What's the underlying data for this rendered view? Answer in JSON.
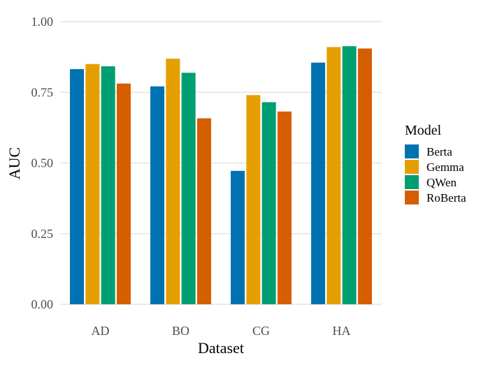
{
  "chart_data": {
    "type": "bar",
    "xlabel": "Dataset",
    "ylabel": "AUC",
    "categories": [
      "AD",
      "BO",
      "CG",
      "HA"
    ],
    "ylim": [
      0,
      1.0
    ],
    "yticks": [
      "0.00",
      "0.25",
      "0.50",
      "0.75",
      "1.00"
    ],
    "grid": true,
    "legend": {
      "title": "Model",
      "placement": "right"
    },
    "series": [
      {
        "name": "Berta",
        "color": "#0072B2",
        "values": [
          0.832,
          0.771,
          0.472,
          0.855
        ]
      },
      {
        "name": "Gemma",
        "color": "#E69F00",
        "values": [
          0.85,
          0.869,
          0.74,
          0.91
        ]
      },
      {
        "name": "QWen",
        "color": "#009E73",
        "values": [
          0.842,
          0.819,
          0.715,
          0.913
        ]
      },
      {
        "name": "RoBerta",
        "color": "#D55E00",
        "values": [
          0.781,
          0.658,
          0.682,
          0.905
        ]
      }
    ]
  }
}
